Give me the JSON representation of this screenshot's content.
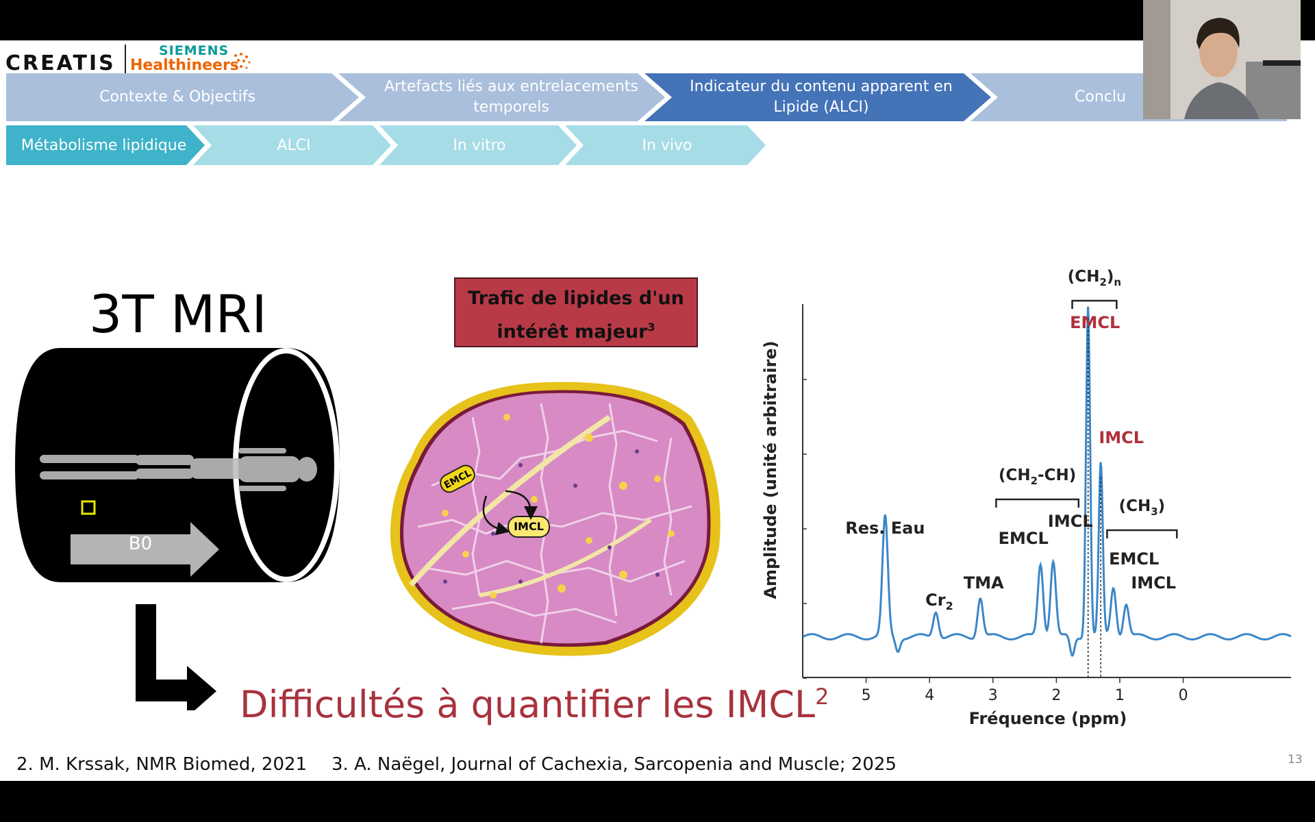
{
  "logos": {
    "creatis": "CREATIS",
    "siemens": "SIEMENS",
    "healthineers": "Healthineers"
  },
  "nav_main": [
    {
      "label": "Contexte & Objectifs",
      "active": false
    },
    {
      "label": "Artefacts liés aux entrelacements temporels",
      "active": false
    },
    {
      "label": "Indicateur du contenu apparent en Lipide (ALCI)",
      "active": true
    },
    {
      "label": "Conclu",
      "active": false
    }
  ],
  "nav_sub": [
    {
      "label": "Métabolisme lipidique",
      "active": true
    },
    {
      "label": "ALCI",
      "active": false
    },
    {
      "label": "In vitro",
      "active": false
    },
    {
      "label": "In vivo",
      "active": false
    }
  ],
  "mri": {
    "title": "3T MRI",
    "field_label": "B0"
  },
  "trafic": {
    "line1": "Trafic de lipides d'un",
    "line2": "intérêt majeur",
    "sup": "3"
  },
  "muscle_labels": {
    "emcl": "EMCL",
    "imcl": "IMCL"
  },
  "conclusion": {
    "text": "Difficultés à quantifier les IMCL",
    "sup": "2"
  },
  "references": [
    "2. M. Krssak, NMR Biomed, 2021",
    "3. A. Naëgel, Journal of Cachexia, Sarcopenia and Muscle; 2025"
  ],
  "page_number": "13",
  "chart_data": {
    "type": "line",
    "xlabel": "Fréquence (ppm)",
    "ylabel": "Amplitude (unité arbitraire)",
    "x_ticks": [
      "5",
      "4",
      "3",
      "2",
      "1",
      "0"
    ],
    "xlim": [
      6.0,
      -1.7
    ],
    "x_reversed": true,
    "peaks": [
      {
        "ppm": 4.7,
        "amplitude": 0.36,
        "label": "Res. Eau"
      },
      {
        "ppm": 3.9,
        "amplitude": 0.08,
        "label": "Cr",
        "sub": "2"
      },
      {
        "ppm": 3.2,
        "amplitude": 0.12,
        "label": "TMA"
      },
      {
        "ppm": 2.25,
        "amplitude": 0.22,
        "label": "EMCL"
      },
      {
        "ppm": 2.05,
        "amplitude": 0.23,
        "label": "IMCL"
      },
      {
        "ppm": 1.5,
        "amplitude": 1.0,
        "label": "EMCL",
        "highlight": true
      },
      {
        "ppm": 1.3,
        "amplitude": 0.52,
        "label": "IMCL",
        "highlight": true
      },
      {
        "ppm": 1.1,
        "amplitude": 0.15,
        "label": "EMCL"
      },
      {
        "ppm": 0.9,
        "amplitude": 0.1,
        "label": "IMCL"
      }
    ],
    "groups": [
      {
        "label": "(CH",
        "sub": "2",
        "tail": ")",
        "subscript_n": "n",
        "from": 1.75,
        "to": 1.05
      },
      {
        "label": "(CH",
        "sub": "2",
        "tail": "-CH)",
        "from": 2.95,
        "to": 1.65
      },
      {
        "label": "(CH",
        "sub": "3",
        "tail": ")",
        "from": 1.2,
        "to": 0.1
      }
    ],
    "colors": {
      "line": "#3a86c8",
      "highlight": "#b0303b"
    }
  }
}
